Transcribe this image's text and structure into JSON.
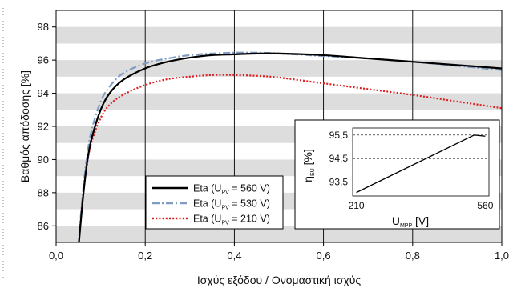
{
  "chart_data": [
    {
      "type": "line",
      "title": "",
      "xlabel": "Ισχύς εξόδου / Ονομαστική ισχύς",
      "ylabel": "Βαθμός απόδοσης [%]",
      "xlim": [
        0,
        1.0
      ],
      "ylim": [
        85,
        99
      ],
      "x_ticks": [
        "0,0",
        "0,2",
        "0,4",
        "0,6",
        "0,8",
        "1,0"
      ],
      "x_tick_values": [
        0,
        0.2,
        0.4,
        0.6,
        0.8,
        1.0
      ],
      "y_ticks": [
        "86",
        "88",
        "90",
        "92",
        "94",
        "96",
        "98"
      ],
      "y_tick_values": [
        86,
        88,
        90,
        92,
        94,
        96,
        98
      ],
      "grid": "alternating horizontal gray bands with vertical gridlines",
      "legend_position": "bottom-left",
      "series": [
        {
          "name": "Eta (U",
          "name_sub": "PV",
          "name_tail": " = 560 V)",
          "color": "#000000",
          "style": "solid",
          "x": [
            0.05,
            0.06,
            0.07,
            0.08,
            0.1,
            0.12,
            0.15,
            0.2,
            0.25,
            0.3,
            0.35,
            0.4,
            0.45,
            0.5,
            0.6,
            0.7,
            0.8,
            0.9,
            1.0
          ],
          "y": [
            84.6,
            87.6,
            89.9,
            91.3,
            93.0,
            94.0,
            94.8,
            95.5,
            95.9,
            96.15,
            96.3,
            96.35,
            96.4,
            96.4,
            96.3,
            96.1,
            95.9,
            95.7,
            95.5
          ]
        },
        {
          "name": "Eta (U",
          "name_sub": "PV",
          "name_tail": " = 530 V)",
          "color": "#7f9dc4",
          "style": "dash-dot",
          "x": [
            0.05,
            0.06,
            0.07,
            0.08,
            0.1,
            0.12,
            0.15,
            0.2,
            0.25,
            0.3,
            0.35,
            0.4,
            0.45,
            0.5,
            0.6,
            0.7,
            0.8,
            0.9,
            1.0
          ],
          "y": [
            84.8,
            88.0,
            90.3,
            91.8,
            93.5,
            94.4,
            95.2,
            95.8,
            96.1,
            96.3,
            96.4,
            96.45,
            96.45,
            96.4,
            96.25,
            96.1,
            95.9,
            95.65,
            95.4
          ]
        },
        {
          "name": "Eta (U",
          "name_sub": "PV",
          "name_tail": " = 210 V)",
          "color": "#dd1f1f",
          "style": "dotted",
          "x": [
            0.05,
            0.06,
            0.07,
            0.08,
            0.1,
            0.12,
            0.15,
            0.2,
            0.25,
            0.3,
            0.35,
            0.4,
            0.45,
            0.5,
            0.6,
            0.7,
            0.8,
            0.9,
            1.0
          ],
          "y": [
            84.6,
            87.8,
            89.8,
            91.1,
            92.5,
            93.3,
            93.9,
            94.5,
            94.85,
            95.0,
            95.1,
            95.1,
            95.05,
            94.95,
            94.6,
            94.25,
            93.9,
            93.5,
            93.1
          ]
        }
      ]
    },
    {
      "type": "line",
      "title": "",
      "xlabel": "U",
      "xlabel_sub": "MPP",
      "xlabel_tail": " [V]",
      "ylabel": "η",
      "ylabel_sub": "EU",
      "ylabel_tail": " [%]",
      "xlim": [
        200,
        570
      ],
      "ylim": [
        92.9,
        95.8
      ],
      "x_ticks": [
        "210",
        "560"
      ],
      "x_tick_values": [
        210,
        560
      ],
      "y_ticks": [
        "93,5",
        "94,5",
        "95,5"
      ],
      "y_tick_values": [
        93.5,
        94.5,
        95.5
      ],
      "grid": "dashed horizontal lines",
      "series": [
        {
          "color": "#000000",
          "x": [
            210,
            530,
            560
          ],
          "y": [
            93.05,
            95.5,
            95.45
          ]
        }
      ]
    }
  ]
}
